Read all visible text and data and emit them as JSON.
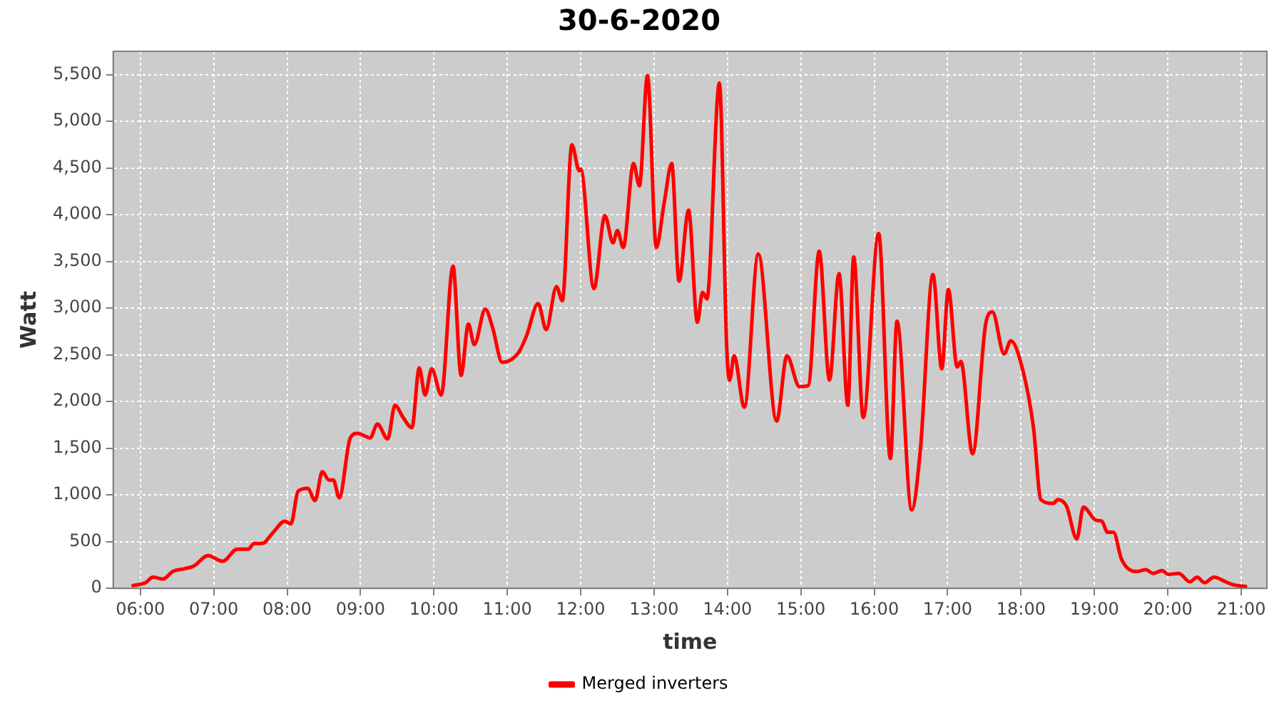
{
  "chart_data": {
    "type": "line",
    "title": "30-6-2020",
    "xlabel": "time",
    "ylabel": "Watt",
    "xlim": [
      5.63,
      21.35
    ],
    "xticks": [
      {
        "value": 6,
        "label": "06:00"
      },
      {
        "value": 7,
        "label": "07:00"
      },
      {
        "value": 8,
        "label": "08:00"
      },
      {
        "value": 9,
        "label": "09:00"
      },
      {
        "value": 10,
        "label": "10:00"
      },
      {
        "value": 11,
        "label": "11:00"
      },
      {
        "value": 12,
        "label": "12:00"
      },
      {
        "value": 13,
        "label": "13:00"
      },
      {
        "value": 14,
        "label": "14:00"
      },
      {
        "value": 15,
        "label": "15:00"
      },
      {
        "value": 16,
        "label": "16:00"
      },
      {
        "value": 17,
        "label": "17:00"
      },
      {
        "value": 18,
        "label": "18:00"
      },
      {
        "value": 19,
        "label": "19:00"
      },
      {
        "value": 20,
        "label": "20:00"
      },
      {
        "value": 21,
        "label": "21:00"
      }
    ],
    "ylim": [
      0,
      5750
    ],
    "yticks": [
      0,
      500,
      {
        "value": 1000,
        "label": "1,000"
      },
      {
        "value": 1500,
        "label": "1,500"
      },
      {
        "value": 2000,
        "label": "2,000"
      },
      {
        "value": 2500,
        "label": "2,500"
      },
      {
        "value": 3000,
        "label": "3,000"
      },
      {
        "value": 3500,
        "label": "3,500"
      },
      {
        "value": 4000,
        "label": "4,000"
      },
      {
        "value": 4500,
        "label": "4,500"
      },
      {
        "value": 5000,
        "label": "5,000"
      },
      {
        "value": 5500,
        "label": "5,500"
      }
    ],
    "grid": true,
    "legend": "bottom",
    "marker": "none",
    "line_style": "solid",
    "x": [
      5.9,
      6.07,
      6.17,
      6.31,
      6.44,
      6.6,
      6.73,
      6.92,
      7.12,
      7.32,
      7.47,
      7.55,
      7.66,
      7.8,
      7.97,
      8.05,
      8.15,
      8.28,
      8.38,
      8.48,
      8.57,
      8.63,
      8.71,
      8.86,
      8.96,
      9.06,
      9.13,
      9.23,
      9.37,
      9.47,
      9.58,
      9.7,
      9.8,
      9.88,
      9.97,
      10.1,
      10.26,
      10.37,
      10.47,
      10.55,
      10.7,
      10.8,
      10.93,
      11.15,
      11.26,
      11.42,
      11.53,
      11.67,
      11.75,
      11.88,
      11.98,
      12.0,
      12.18,
      12.33,
      12.44,
      12.5,
      12.58,
      12.72,
      12.8,
      12.91,
      13.03,
      13.14,
      13.24,
      13.34,
      13.47,
      13.59,
      13.66,
      13.72,
      13.89,
      13.99,
      14.03,
      14.09,
      14.23,
      14.42,
      14.67,
      14.81,
      14.98,
      15.1,
      15.25,
      15.39,
      15.52,
      15.64,
      15.72,
      15.85,
      16.06,
      16.22,
      16.31,
      16.51,
      16.63,
      16.8,
      16.92,
      17.01,
      17.13,
      17.18,
      17.34,
      17.52,
      17.61,
      17.77,
      17.86,
      18.02,
      18.17,
      18.27,
      18.44,
      18.5,
      18.62,
      18.76,
      18.85,
      19.02,
      19.1,
      19.18,
      19.26,
      19.37,
      19.57,
      19.7,
      19.8,
      19.92,
      20.01,
      20.15,
      20.3,
      20.4,
      20.5,
      20.63,
      20.79,
      20.88,
      21.06
    ],
    "series": [
      {
        "name": "Merged inverters",
        "color": "#ff0000",
        "values": [
          30,
          60,
          120,
          100,
          180,
          210,
          240,
          350,
          290,
          420,
          420,
          480,
          480,
          590,
          720,
          690,
          1040,
          1070,
          940,
          1250,
          1160,
          1160,
          970,
          1610,
          1660,
          1630,
          1610,
          1760,
          1600,
          1960,
          1830,
          1720,
          2360,
          2070,
          2350,
          2070,
          3450,
          2280,
          2830,
          2610,
          2990,
          2790,
          2420,
          2520,
          2700,
          3050,
          2770,
          3230,
          3080,
          4750,
          4470,
          4490,
          3210,
          3990,
          3700,
          3830,
          3650,
          4550,
          4310,
          5490,
          3650,
          4140,
          4550,
          3290,
          4050,
          2850,
          3170,
          3100,
          5410,
          2570,
          2230,
          2490,
          1940,
          3580,
          1790,
          2490,
          2160,
          2170,
          3610,
          2230,
          3370,
          1960,
          3550,
          1830,
          3800,
          1390,
          2860,
          840,
          1500,
          3360,
          2350,
          3200,
          2370,
          2430,
          1440,
          2840,
          2960,
          2510,
          2650,
          2350,
          1720,
          950,
          910,
          950,
          880,
          530,
          870,
          730,
          720,
          600,
          600,
          310,
          180,
          200,
          160,
          190,
          150,
          160,
          70,
          120,
          60,
          120,
          70,
          40,
          20
        ]
      }
    ]
  }
}
